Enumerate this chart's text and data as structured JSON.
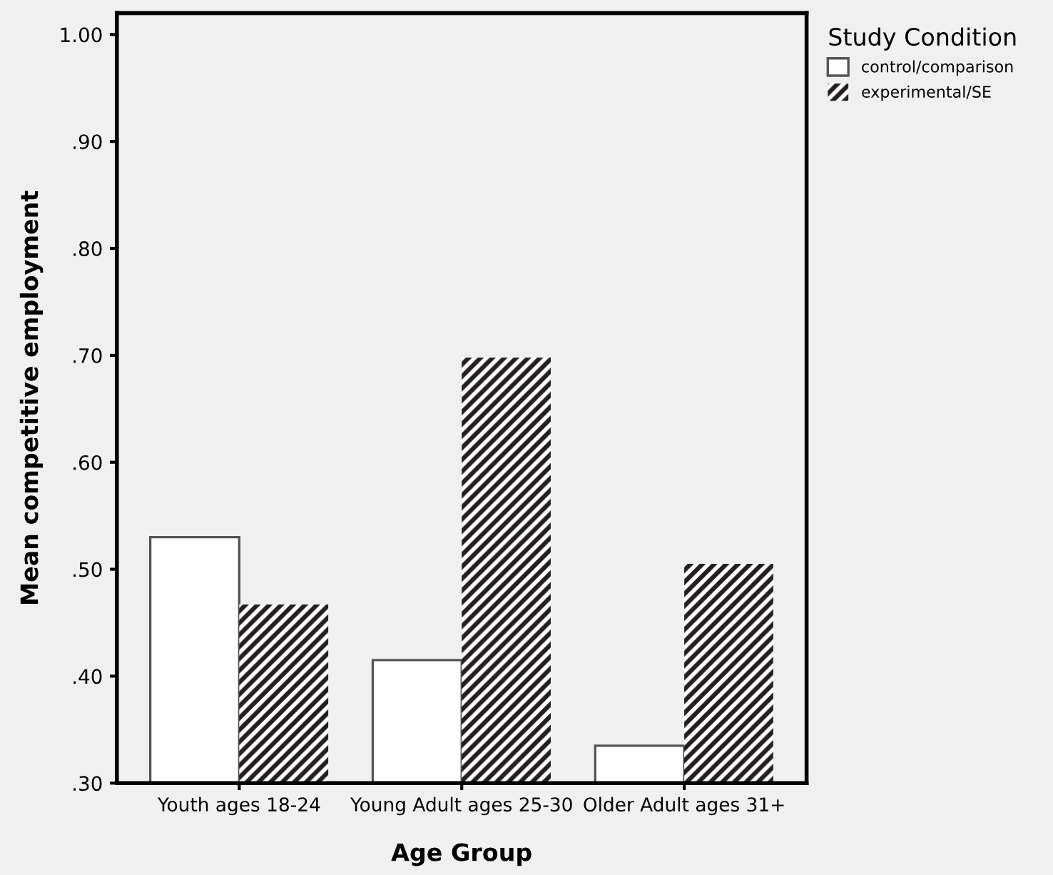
{
  "chart_data": {
    "type": "bar",
    "categories": [
      "Youth ages 18-24",
      "Young Adult ages 25-30",
      "Older Adult ages 31+"
    ],
    "series": [
      {
        "name": "control/comparison",
        "color": "#ffffff",
        "values": [
          0.53,
          0.415,
          0.335
        ]
      },
      {
        "name": "experimental/SE",
        "color": "#231f20",
        "values": [
          0.467,
          0.698,
          0.505
        ]
      }
    ],
    "xlabel": "Age Group",
    "ylabel": "Mean competitive employment",
    "legend_title": "Study Condition",
    "ylim": [
      0.3,
      1.02
    ],
    "yticks": [
      {
        "value": 0.3,
        "label": ".30"
      },
      {
        "value": 0.4,
        "label": ".40"
      },
      {
        "value": 0.5,
        "label": ".50"
      },
      {
        "value": 0.6,
        "label": ".60"
      },
      {
        "value": 0.7,
        "label": ".70"
      },
      {
        "value": 0.8,
        "label": ".80"
      },
      {
        "value": 0.9,
        "label": ".90"
      },
      {
        "value": 1.0,
        "label": "1.00"
      }
    ],
    "legend": "top right",
    "grid": false
  }
}
